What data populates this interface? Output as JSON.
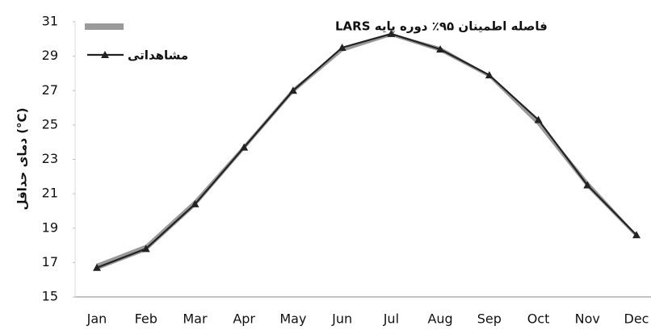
{
  "chart_data": {
    "type": "line",
    "y_label": "دمای حداقل (°C)",
    "categories": [
      "Jan",
      "Feb",
      "Mar",
      "Apr",
      "May",
      "Jun",
      "Jul",
      "Aug",
      "Sep",
      "Oct",
      "Nov",
      "Dec"
    ],
    "band": {
      "name": "فاصله اطمینان ۹۵٪ دوره پایه LARS",
      "color": "#9a9a9a",
      "upper": [
        16.9,
        18.0,
        20.6,
        23.8,
        27.1,
        29.4,
        30.3,
        29.5,
        27.9,
        25.2,
        21.7,
        18.6
      ],
      "lower": [
        16.6,
        17.7,
        20.3,
        23.6,
        26.9,
        29.3,
        30.2,
        29.3,
        27.8,
        25.0,
        21.4,
        18.5
      ]
    },
    "series": [
      {
        "name": "مشاهداتی",
        "color": "#222222",
        "values": [
          16.7,
          17.8,
          20.4,
          23.7,
          27.0,
          29.5,
          30.3,
          29.4,
          27.9,
          25.3,
          21.5,
          18.6
        ]
      }
    ],
    "ylim": [
      15,
      31
    ],
    "yticks": [
      15,
      17,
      19,
      21,
      23,
      25,
      27,
      29,
      31
    ],
    "grid": false
  }
}
